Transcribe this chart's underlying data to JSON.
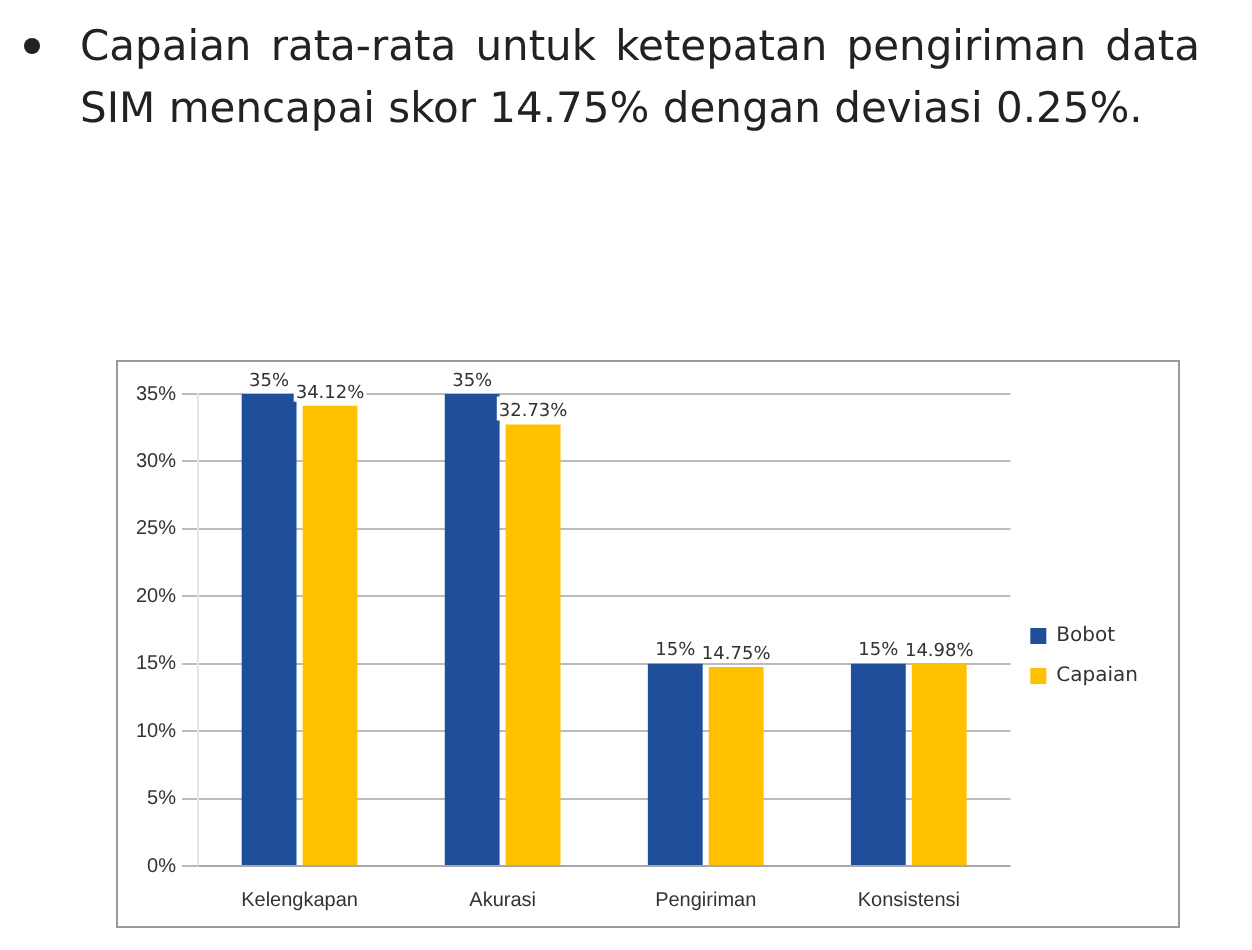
{
  "chart_data": {
    "type": "bar",
    "annotations": [
      "Capaian rata-rata untuk ketepatan pengiriman data SIM mencapai skor 14.75%  dengan deviasi 0.25%."
    ],
    "categories": [
      "Kelengkapan",
      "Akurasi",
      "Pengiriman",
      "Konsistensi"
    ],
    "series": [
      {
        "name": "Bobot",
        "color": "#1f4e9a",
        "values": [
          35,
          35,
          15,
          15
        ],
        "value_labels": [
          "35%",
          "35%",
          "15%",
          "15%"
        ]
      },
      {
        "name": "Capaian",
        "color": "#ffc000",
        "values": [
          34.12,
          32.73,
          14.75,
          14.98
        ],
        "value_labels": [
          "34.12%",
          "32.73%",
          "14.75%",
          "14.98%"
        ]
      }
    ],
    "ylim": [
      0,
      35
    ],
    "yticks": [
      {
        "value": 0,
        "label": "0%"
      },
      {
        "value": 5,
        "label": "5%"
      },
      {
        "value": 10,
        "label": "10%"
      },
      {
        "value": 15,
        "label": "15%"
      },
      {
        "value": 20,
        "label": "20%"
      },
      {
        "value": 25,
        "label": "25%"
      },
      {
        "value": 30,
        "label": "30%"
      },
      {
        "value": 35,
        "label": "35%"
      }
    ],
    "grid": "y",
    "legend": "right"
  }
}
